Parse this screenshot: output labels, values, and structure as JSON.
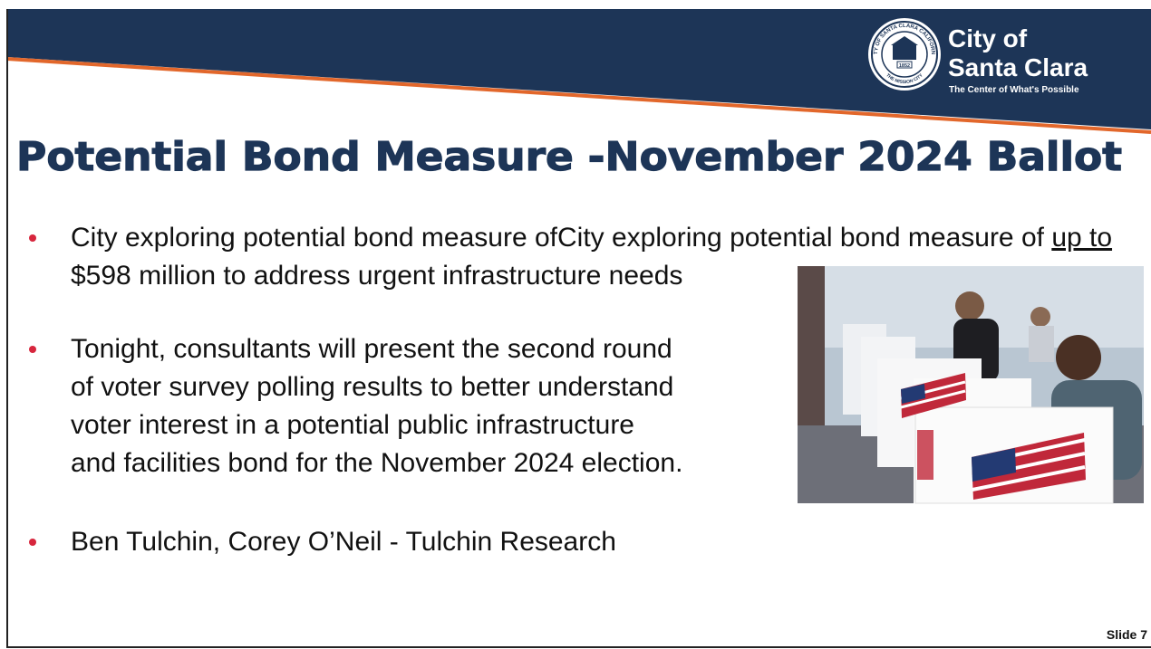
{
  "header": {
    "seal": {
      "ring_text": "CITY OF SANTA CLARA CALIFORNIA",
      "year": "1852",
      "motto": "THE MISSION CITY"
    },
    "logo": {
      "line1": "City of",
      "line2": "Santa Clara",
      "tagline": "The Center of What's Possible"
    }
  },
  "title": "Potential Bond Measure -November 2024 Ballot",
  "bullets": [
    {
      "lines": [
        "City exploring potential bond measure of",
        "$598 million to address urgent infrastructure needs"
      ],
      "underlined": "up to"
    },
    {
      "lines": [
        "Tonight, consultants will present the second round",
        "of voter survey polling results to better understand",
        "voter interest in a potential public infrastructure",
        "and facilities bond for the November 2024 election."
      ]
    },
    {
      "lines": [
        "Ben Tulchin, Corey O’Neil  - Tulchin Research"
      ]
    }
  ],
  "footer": {
    "slide_label": "Slide 7"
  }
}
